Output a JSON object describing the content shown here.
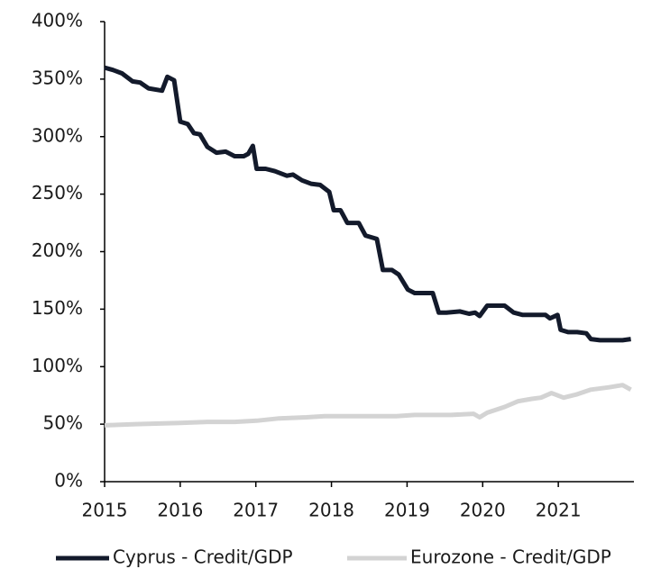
{
  "chart_data": {
    "type": "line",
    "xlim": [
      2015,
      2022
    ],
    "xticks": [
      2015,
      2016,
      2017,
      2018,
      2019,
      2020,
      2021
    ],
    "ylim": [
      0,
      400
    ],
    "yticks": [
      {
        "value": 0,
        "label": "0%"
      },
      {
        "value": 50,
        "label": "50%"
      },
      {
        "value": 100,
        "label": "100%"
      },
      {
        "value": 150,
        "label": "150%"
      },
      {
        "value": 200,
        "label": "200%"
      },
      {
        "value": 250,
        "label": "250%"
      },
      {
        "value": 300,
        "label": "300%"
      },
      {
        "value": 350,
        "label": "350%"
      },
      {
        "value": 400,
        "label": "400%"
      }
    ],
    "legend": "bottom",
    "series": [
      {
        "name": "Cyprus - Credit/GDP",
        "color": "#131a2b",
        "x": [
          2015.0,
          2015.11,
          2015.23,
          2015.37,
          2015.47,
          2015.58,
          2015.76,
          2015.83,
          2015.92,
          2016.0,
          2016.1,
          2016.18,
          2016.26,
          2016.36,
          2016.48,
          2016.6,
          2016.72,
          2016.84,
          2016.9,
          2016.96,
          2017.01,
          2017.13,
          2017.25,
          2017.41,
          2017.49,
          2017.61,
          2017.73,
          2017.85,
          2017.97,
          2018.03,
          2018.12,
          2018.21,
          2018.36,
          2018.45,
          2018.6,
          2018.68,
          2018.8,
          2018.89,
          2019.01,
          2019.1,
          2019.22,
          2019.34,
          2019.42,
          2019.52,
          2019.7,
          2019.82,
          2019.9,
          2019.96,
          2020.06,
          2020.15,
          2020.29,
          2020.41,
          2020.53,
          2020.71,
          2020.83,
          2020.89,
          2020.99,
          2021.03,
          2021.13,
          2021.25,
          2021.37,
          2021.43,
          2021.55,
          2021.73,
          2021.85,
          2021.96
        ],
        "values": [
          360,
          358,
          355,
          348,
          347,
          342,
          340,
          352,
          349,
          313,
          311,
          303,
          302,
          291,
          286,
          287,
          283,
          283,
          285,
          292,
          272,
          272,
          270,
          266,
          267,
          262,
          259,
          258,
          252,
          236,
          236,
          225,
          225,
          214,
          211,
          184,
          184,
          180,
          167,
          164,
          164,
          164,
          147,
          147,
          148,
          146,
          147,
          144,
          153,
          153,
          153,
          147,
          145,
          145,
          145,
          142,
          145,
          132,
          130,
          130,
          129,
          124,
          123,
          123,
          123,
          124
        ]
      },
      {
        "name": "Eurozone - Credit/GDP",
        "color": "#d3d3d3",
        "x": [
          2015.0,
          2015.41,
          2016.0,
          2016.36,
          2016.72,
          2017.01,
          2017.31,
          2017.67,
          2017.91,
          2018.15,
          2018.51,
          2018.86,
          2019.1,
          2019.58,
          2019.88,
          2019.96,
          2020.06,
          2020.29,
          2020.47,
          2020.65,
          2020.77,
          2020.91,
          2021.07,
          2021.25,
          2021.43,
          2021.67,
          2021.85,
          2021.96
        ],
        "values": [
          49,
          50,
          51,
          52,
          52,
          53,
          55,
          56,
          57,
          57,
          57,
          57,
          58,
          58,
          59,
          56,
          60,
          65,
          70,
          72,
          73,
          77,
          73,
          76,
          80,
          82,
          84,
          80
        ]
      }
    ]
  }
}
